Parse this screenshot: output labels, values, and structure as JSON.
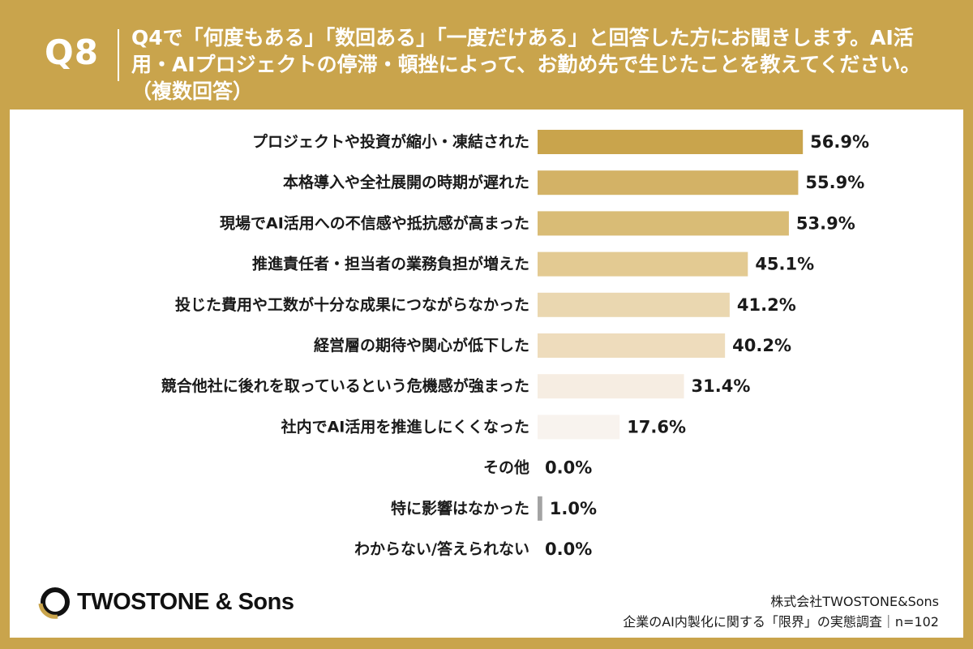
{
  "header": {
    "question_number": "Q8",
    "question_text": "Q4で「何度もある」「数回ある」「一度だけある」と回答した方にお聞きします。AI活用・AIプロジェクトの停滞・頓挫によって、お勤め先で生じたことを教えてください。（複数回答）"
  },
  "footer": {
    "logo_text": "TWOSTONE & Sons",
    "company": "株式会社TWOSTONE&Sons",
    "source": "企業のAI内製化に関する「限界」の実態調査｜n=102"
  },
  "colors": {
    "background": "#c9a44c",
    "bar_colors": [
      "#c9a44c",
      "#d3b266",
      "#d9bc76",
      "#e3ca92",
      "#ead7b0",
      "#eedcbc",
      "#f6ede2",
      "#f8f3ee",
      "#f8f3ee",
      "#a3a3a3",
      "#f8f3ee"
    ]
  },
  "chart_data": {
    "type": "bar",
    "orientation": "horizontal",
    "categories": [
      "プロジェクトや投資が縮小・凍結された",
      "本格導入や全社展開の時期が遅れた",
      "現場でAI活用への不信感や抵抗感が高まった",
      "推進責任者・担当者の業務負担が増えた",
      "投じた費用や工数が十分な成果につながらなかった",
      "経営層の期待や関心が低下した",
      "競合他社に後れを取っているという危機感が強まった",
      "社内でAI活用を推進しにくくなった",
      "その他",
      "特に影響はなかった",
      "わからない/答えられない"
    ],
    "values": [
      56.9,
      55.9,
      53.9,
      45.1,
      41.2,
      40.2,
      31.4,
      17.6,
      0.0,
      1.0,
      0.0
    ],
    "value_labels": [
      "56.9%",
      "55.9%",
      "53.9%",
      "45.1%",
      "41.2%",
      "40.2%",
      "31.4%",
      "17.6%",
      "0.0%",
      "1.0%",
      "0.0%"
    ],
    "unit": "%",
    "xlim": [
      0,
      60
    ],
    "grid": false,
    "legend": "none"
  }
}
